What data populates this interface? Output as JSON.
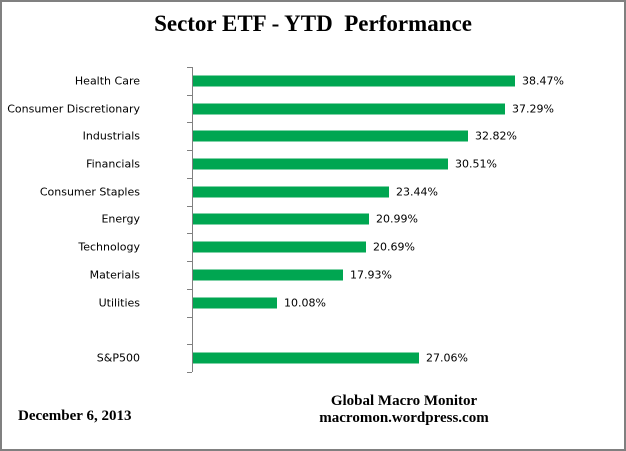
{
  "title": "Sector ETF - YTD  Performance",
  "footer": {
    "date": "December 6, 2013",
    "credit_line1": "Global Macro Monitor",
    "credit_line2": "macromon.wordpress.com"
  },
  "colors": {
    "bar": "#00A651",
    "axis": "#808080",
    "frame_border": "#808080",
    "text": "#000000"
  },
  "chart_data": {
    "type": "bar",
    "orientation": "horizontal",
    "title": "Sector ETF - YTD  Performance",
    "categories": [
      "Health Care",
      "Consumer Discretionary",
      "Industrials",
      "Financials",
      "Consumer Staples",
      "Energy",
      "Technology",
      "Materials",
      "Utilities",
      "S&P500"
    ],
    "values": [
      38.47,
      37.29,
      32.82,
      30.51,
      23.44,
      20.99,
      20.69,
      17.93,
      10.08,
      27.06
    ],
    "value_labels": [
      "38.47%",
      "37.29%",
      "32.82%",
      "30.51%",
      "23.44%",
      "20.99%",
      "20.69%",
      "17.93%",
      "10.08%",
      "27.06%"
    ],
    "xlabel": "",
    "ylabel": "",
    "x_axis_visible": false,
    "gridlines": false,
    "legend": false,
    "data_labels": true,
    "gap_row_index": 9,
    "total_row_slots": 11
  }
}
